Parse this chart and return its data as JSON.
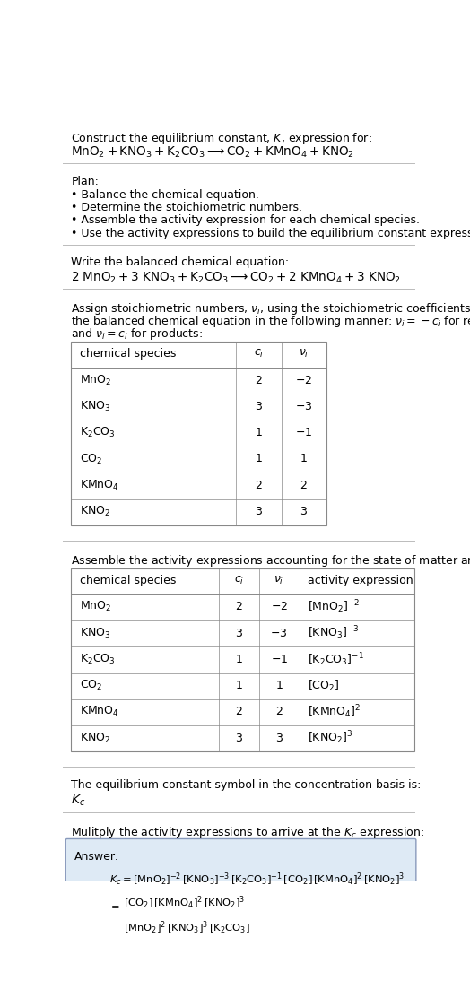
{
  "title_line1": "Construct the equilibrium constant, $K$, expression for:",
  "title_line2": "$\\mathrm{MnO_2 + KNO_3 + K_2CO_3 \\longrightarrow CO_2 + KMnO_4 + KNO_2}$",
  "plan_header": "Plan:",
  "plan_items": [
    "• Balance the chemical equation.",
    "• Determine the stoichiometric numbers.",
    "• Assemble the activity expression for each chemical species.",
    "• Use the activity expressions to build the equilibrium constant expression."
  ],
  "balanced_header": "Write the balanced chemical equation:",
  "balanced_eq": "$\\mathrm{2\\ MnO_2 + 3\\ KNO_3 + K_2CO_3 \\longrightarrow CO_2 + 2\\ KMnO_4 + 3\\ KNO_2}$",
  "assign_text1": "Assign stoichiometric numbers, $\\nu_i$, using the stoichiometric coefficients, $c_i$, from",
  "assign_text2": "the balanced chemical equation in the following manner: $\\nu_i = -c_i$ for reactants",
  "assign_text3": "and $\\nu_i = c_i$ for products:",
  "table1_headers": [
    "chemical species",
    "$c_i$",
    "$\\nu_i$"
  ],
  "table1_rows": [
    [
      "$\\mathrm{MnO_2}$",
      "2",
      "$-2$"
    ],
    [
      "$\\mathrm{KNO_3}$",
      "3",
      "$-3$"
    ],
    [
      "$\\mathrm{K_2CO_3}$",
      "1",
      "$-1$"
    ],
    [
      "$\\mathrm{CO_2}$",
      "1",
      "$1$"
    ],
    [
      "$\\mathrm{KMnO_4}$",
      "2",
      "$2$"
    ],
    [
      "$\\mathrm{KNO_2}$",
      "3",
      "$3$"
    ]
  ],
  "assemble_header": "Assemble the activity expressions accounting for the state of matter and $\\nu_i$:",
  "table2_headers": [
    "chemical species",
    "$c_i$",
    "$\\nu_i$",
    "activity expression"
  ],
  "table2_rows": [
    [
      "$\\mathrm{MnO_2}$",
      "2",
      "$-2$",
      "$[\\mathrm{MnO_2}]^{-2}$"
    ],
    [
      "$\\mathrm{KNO_3}$",
      "3",
      "$-3$",
      "$[\\mathrm{KNO_3}]^{-3}$"
    ],
    [
      "$\\mathrm{K_2CO_3}$",
      "1",
      "$-1$",
      "$[\\mathrm{K_2CO_3}]^{-1}$"
    ],
    [
      "$\\mathrm{CO_2}$",
      "1",
      "$1$",
      "$[\\mathrm{CO_2}]$"
    ],
    [
      "$\\mathrm{KMnO_4}$",
      "2",
      "$2$",
      "$[\\mathrm{KMnO_4}]^2$"
    ],
    [
      "$\\mathrm{KNO_2}$",
      "3",
      "$3$",
      "$[\\mathrm{KNO_2}]^3$"
    ]
  ],
  "kc_header": "The equilibrium constant symbol in the concentration basis is:",
  "kc_symbol": "$K_c$",
  "multiply_header": "Mulitply the activity expressions to arrive at the $K_c$ expression:",
  "answer_label": "Answer:",
  "answer_line1": "$K_c = [\\mathrm{MnO_2}]^{-2}\\,[\\mathrm{KNO_3}]^{-3}\\,[\\mathrm{K_2CO_3}]^{-1}\\,[\\mathrm{CO_2}]\\,[\\mathrm{KMnO_4}]^2\\,[\\mathrm{KNO_2}]^3$",
  "answer_num": "$[\\mathrm{CO_2}]\\,[\\mathrm{KMnO_4}]^2\\,[\\mathrm{KNO_2}]^3$",
  "answer_den": "$[\\mathrm{MnO_2}]^2\\,[\\mathrm{KNO_3}]^3\\,[\\mathrm{K_2CO_3}]$",
  "bg_color": "#ffffff",
  "text_color": "#000000",
  "answer_box_bg": "#deeaf5",
  "answer_box_border": "#aabbcc",
  "font_size": 9.0
}
